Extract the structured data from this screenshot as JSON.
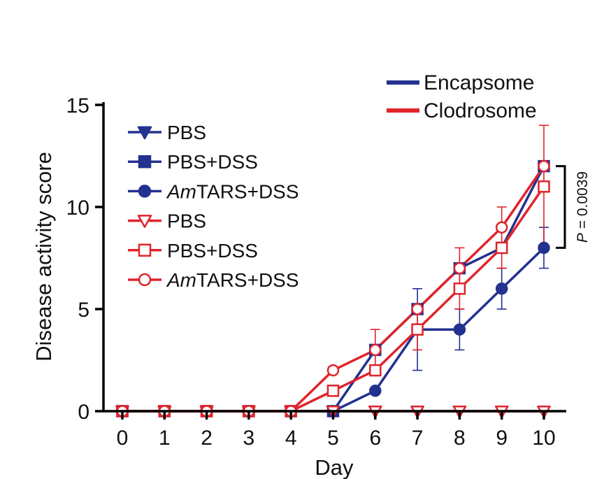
{
  "chart_data": {
    "type": "line",
    "title": "",
    "xlabel": "Day",
    "ylabel": "Disease activity score",
    "xlim": [
      0,
      10
    ],
    "ylim": [
      0,
      15
    ],
    "x_ticks": [
      "0",
      "1",
      "2",
      "3",
      "4",
      "5",
      "6",
      "7",
      "8",
      "9",
      "10"
    ],
    "y_ticks": [
      "0",
      "5",
      "10",
      "15"
    ],
    "x": [
      0,
      1,
      2,
      3,
      4,
      5,
      6,
      7,
      8,
      9,
      10
    ],
    "colors": {
      "encapsome": "#23318f",
      "clodrosome": "#e0242b"
    },
    "group_legend": [
      {
        "label": "Encapsome",
        "color": "#23318f"
      },
      {
        "label": "Clodrosome",
        "color": "#e0242b"
      }
    ],
    "series": [
      {
        "name": "PBS",
        "prefix": "",
        "group": "Encapsome",
        "color": "#23318f",
        "marker": "triangle-down",
        "filled": true,
        "values": [
          0,
          0,
          0,
          0,
          0,
          0,
          0,
          0,
          0,
          0,
          0
        ],
        "errors": [
          0,
          0,
          0,
          0,
          0,
          0,
          0,
          0,
          0,
          0,
          0
        ]
      },
      {
        "name": "PBS+DSS",
        "prefix": "",
        "group": "Encapsome",
        "color": "#23318f",
        "marker": "square",
        "filled": true,
        "values": [
          0,
          0,
          0,
          0,
          0,
          0,
          3,
          5,
          7,
          8,
          12
        ],
        "errors": [
          0,
          0,
          0,
          0,
          0,
          0,
          0,
          0,
          0,
          0,
          0
        ]
      },
      {
        "name": "TARS+DSS",
        "prefix": "Am",
        "group": "Encapsome",
        "color": "#23318f",
        "marker": "circle",
        "filled": true,
        "values": [
          0,
          0,
          0,
          0,
          0,
          0,
          1,
          4,
          4,
          6,
          8
        ],
        "errors": [
          0,
          0,
          0,
          0,
          0,
          0,
          0,
          2,
          1,
          1,
          1
        ]
      },
      {
        "name": "PBS",
        "prefix": "",
        "group": "Clodrosome",
        "color": "#e0242b",
        "marker": "triangle-down",
        "filled": false,
        "values": [
          0,
          0,
          0,
          0,
          0,
          0,
          0,
          0,
          0,
          0,
          0
        ],
        "errors": [
          0,
          0,
          0,
          0,
          0,
          0,
          0,
          0,
          0,
          0,
          0
        ]
      },
      {
        "name": "PBS+DSS",
        "prefix": "",
        "group": "Clodrosome",
        "color": "#e0242b",
        "marker": "square",
        "filled": false,
        "values": [
          0,
          0,
          0,
          0,
          0,
          1,
          2,
          4,
          6,
          8,
          11
        ],
        "errors": [
          0,
          0,
          0,
          0,
          0,
          0,
          0,
          1,
          1,
          1,
          3
        ]
      },
      {
        "name": "TARS+DSS",
        "prefix": "Am",
        "group": "Clodrosome",
        "color": "#e0242b",
        "marker": "circle",
        "filled": false,
        "values": [
          0,
          0,
          0,
          0,
          0,
          2,
          3,
          5,
          7,
          9,
          12
        ],
        "errors": [
          0,
          0,
          0,
          0,
          0,
          0,
          1,
          0,
          1,
          1,
          0
        ]
      }
    ],
    "annotation": {
      "italic": "P",
      "text": " = 0.0039",
      "y_from": 8,
      "y_to": 12,
      "x": 10
    }
  }
}
